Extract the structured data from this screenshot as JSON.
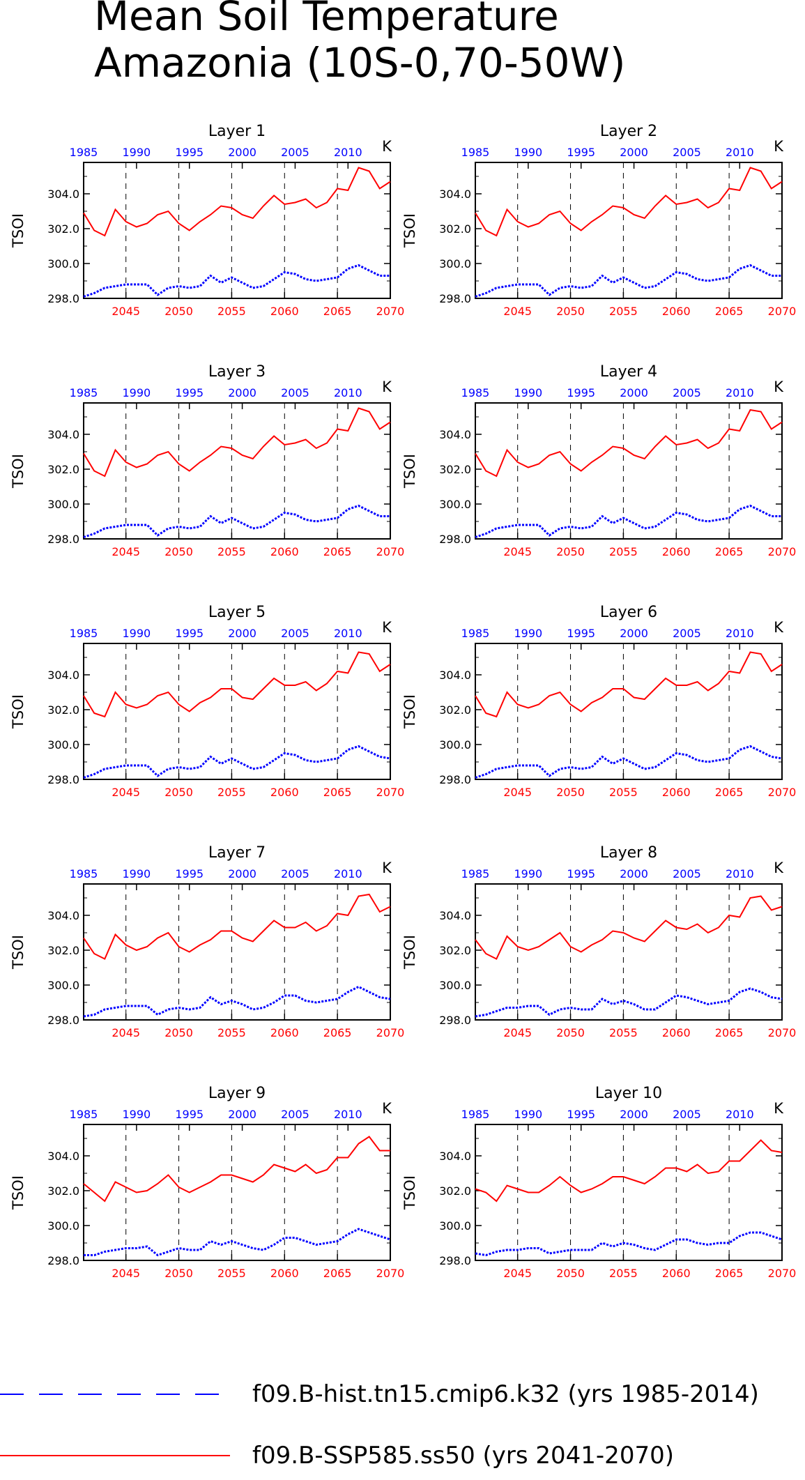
{
  "title_line1": "Mean Soil Temperature",
  "title_line2": "Amazonia (10S-0,70-50W)",
  "colors": {
    "hist": "#0000ff",
    "ssp": "#ff0000",
    "axis": "#000000",
    "grid": "#000000"
  },
  "legend": [
    {
      "label": "f09.B-hist.tn15.cmip6.k32 (yrs 1985-2014)",
      "color": "#0000ff",
      "style": "dashed"
    },
    {
      "label": "f09.B-SSP585.ss50 (yrs 2041-2070)",
      "color": "#ff0000",
      "style": "solid"
    }
  ],
  "axes": {
    "ylabel": "TSOI",
    "units": "K",
    "ylim": [
      298.0,
      305.8
    ],
    "yticks": [
      "298.0",
      "300.0",
      "302.0",
      "304.0"
    ],
    "bottom_xlim": [
      2041,
      2070
    ],
    "bottom_ticks": [
      "2045",
      "2050",
      "2055",
      "2060",
      "2065",
      "2070"
    ],
    "top_xlim": [
      1985,
      2014
    ],
    "top_ticks": [
      "1985",
      "1990",
      "1995",
      "2000",
      "2005",
      "2010"
    ],
    "vertical_gridlines_at": [
      2045,
      2050,
      2055,
      2060,
      2065
    ]
  },
  "chart_data": [
    {
      "type": "line",
      "title": "Layer 1",
      "x_hist": [
        1985,
        1986,
        1987,
        1988,
        1989,
        1990,
        1991,
        1992,
        1993,
        1994,
        1995,
        1996,
        1997,
        1998,
        1999,
        2000,
        2001,
        2002,
        2003,
        2004,
        2005,
        2006,
        2007,
        2008,
        2009,
        2010,
        2011,
        2012,
        2013,
        2014
      ],
      "x_ssp": [
        2041,
        2042,
        2043,
        2044,
        2045,
        2046,
        2047,
        2048,
        2049,
        2050,
        2051,
        2052,
        2053,
        2054,
        2055,
        2056,
        2057,
        2058,
        2059,
        2060,
        2061,
        2062,
        2063,
        2064,
        2065,
        2066,
        2067,
        2068,
        2069,
        2070
      ],
      "series": [
        {
          "name": "f09.B-hist.tn15.cmip6.k32 (yrs 1985-2014)",
          "values": [
            298.1,
            298.3,
            298.6,
            298.7,
            298.8,
            298.8,
            298.8,
            298.2,
            298.6,
            298.7,
            298.6,
            298.7,
            299.3,
            298.9,
            299.2,
            298.9,
            298.6,
            298.7,
            299.1,
            299.5,
            299.4,
            299.1,
            299.0,
            299.1,
            299.2,
            299.7,
            299.9,
            299.6,
            299.3,
            299.3
          ]
        },
        {
          "name": "f09.B-SSP585.ss50 (yrs 2041-2070)",
          "values": [
            302.9,
            301.9,
            301.6,
            303.1,
            302.4,
            302.1,
            302.3,
            302.8,
            303.0,
            302.3,
            301.9,
            302.4,
            302.8,
            303.3,
            303.2,
            302.8,
            302.6,
            303.3,
            303.9,
            303.4,
            303.5,
            303.7,
            303.2,
            303.5,
            304.3,
            304.2,
            305.5,
            305.3,
            304.3,
            304.7
          ]
        }
      ]
    },
    {
      "type": "line",
      "title": "Layer 2",
      "series": [
        {
          "name": "f09.B-hist.tn15.cmip6.k32 (yrs 1985-2014)",
          "values": [
            298.1,
            298.3,
            298.6,
            298.7,
            298.8,
            298.8,
            298.8,
            298.2,
            298.6,
            298.7,
            298.6,
            298.7,
            299.3,
            298.9,
            299.2,
            298.9,
            298.6,
            298.7,
            299.1,
            299.5,
            299.4,
            299.1,
            299.0,
            299.1,
            299.2,
            299.7,
            299.9,
            299.6,
            299.3,
            299.3
          ]
        },
        {
          "name": "f09.B-SSP585.ss50 (yrs 2041-2070)",
          "values": [
            302.9,
            301.9,
            301.6,
            303.1,
            302.4,
            302.1,
            302.3,
            302.8,
            303.0,
            302.3,
            301.9,
            302.4,
            302.8,
            303.3,
            303.2,
            302.8,
            302.6,
            303.3,
            303.9,
            303.4,
            303.5,
            303.7,
            303.2,
            303.5,
            304.3,
            304.2,
            305.5,
            305.3,
            304.3,
            304.7
          ]
        }
      ]
    },
    {
      "type": "line",
      "title": "Layer 3",
      "series": [
        {
          "name": "f09.B-hist.tn15.cmip6.k32 (yrs 1985-2014)",
          "values": [
            298.1,
            298.3,
            298.6,
            298.7,
            298.8,
            298.8,
            298.8,
            298.2,
            298.6,
            298.7,
            298.6,
            298.7,
            299.3,
            298.9,
            299.2,
            298.9,
            298.6,
            298.7,
            299.1,
            299.5,
            299.4,
            299.1,
            299.0,
            299.1,
            299.2,
            299.7,
            299.9,
            299.6,
            299.3,
            299.3
          ]
        },
        {
          "name": "f09.B-SSP585.ss50 (yrs 2041-2070)",
          "values": [
            302.9,
            301.9,
            301.6,
            303.1,
            302.4,
            302.1,
            302.3,
            302.8,
            303.0,
            302.3,
            301.9,
            302.4,
            302.8,
            303.3,
            303.2,
            302.8,
            302.6,
            303.3,
            303.9,
            303.4,
            303.5,
            303.7,
            303.2,
            303.5,
            304.3,
            304.2,
            305.5,
            305.3,
            304.3,
            304.7
          ]
        }
      ]
    },
    {
      "type": "line",
      "title": "Layer 4",
      "series": [
        {
          "name": "f09.B-hist.tn15.cmip6.k32 (yrs 1985-2014)",
          "values": [
            298.1,
            298.3,
            298.6,
            298.7,
            298.8,
            298.8,
            298.8,
            298.2,
            298.6,
            298.7,
            298.6,
            298.7,
            299.3,
            298.9,
            299.2,
            298.9,
            298.6,
            298.7,
            299.1,
            299.5,
            299.4,
            299.1,
            299.0,
            299.1,
            299.2,
            299.7,
            299.9,
            299.6,
            299.3,
            299.3
          ]
        },
        {
          "name": "f09.B-SSP585.ss50 (yrs 2041-2070)",
          "values": [
            302.9,
            301.9,
            301.6,
            303.1,
            302.4,
            302.1,
            302.3,
            302.8,
            303.0,
            302.3,
            301.9,
            302.4,
            302.8,
            303.3,
            303.2,
            302.8,
            302.6,
            303.3,
            303.9,
            303.4,
            303.5,
            303.7,
            303.2,
            303.5,
            304.3,
            304.2,
            305.4,
            305.3,
            304.3,
            304.7
          ]
        }
      ]
    },
    {
      "type": "line",
      "title": "Layer 5",
      "series": [
        {
          "name": "f09.B-hist.tn15.cmip6.k32 (yrs 1985-2014)",
          "values": [
            298.1,
            298.3,
            298.6,
            298.7,
            298.8,
            298.8,
            298.8,
            298.2,
            298.6,
            298.7,
            298.6,
            298.7,
            299.3,
            298.9,
            299.2,
            298.9,
            298.6,
            298.7,
            299.1,
            299.5,
            299.4,
            299.1,
            299.0,
            299.1,
            299.2,
            299.7,
            299.9,
            299.6,
            299.3,
            299.2
          ]
        },
        {
          "name": "f09.B-SSP585.ss50 (yrs 2041-2070)",
          "values": [
            302.8,
            301.8,
            301.6,
            303.0,
            302.3,
            302.1,
            302.3,
            302.8,
            303.0,
            302.3,
            301.9,
            302.4,
            302.7,
            303.2,
            303.2,
            302.7,
            302.6,
            303.2,
            303.8,
            303.4,
            303.4,
            303.6,
            303.1,
            303.5,
            304.2,
            304.1,
            305.3,
            305.2,
            304.2,
            304.6
          ]
        }
      ]
    },
    {
      "type": "line",
      "title": "Layer 6",
      "series": [
        {
          "name": "f09.B-hist.tn15.cmip6.k32 (yrs 1985-2014)",
          "values": [
            298.1,
            298.3,
            298.6,
            298.7,
            298.8,
            298.8,
            298.8,
            298.2,
            298.6,
            298.7,
            298.6,
            298.7,
            299.3,
            298.9,
            299.2,
            298.9,
            298.6,
            298.7,
            299.1,
            299.5,
            299.4,
            299.1,
            299.0,
            299.1,
            299.2,
            299.7,
            299.9,
            299.6,
            299.3,
            299.2
          ]
        },
        {
          "name": "f09.B-SSP585.ss50 (yrs 2041-2070)",
          "values": [
            302.8,
            301.8,
            301.6,
            303.0,
            302.3,
            302.1,
            302.3,
            302.8,
            303.0,
            302.3,
            301.9,
            302.4,
            302.7,
            303.2,
            303.2,
            302.7,
            302.6,
            303.2,
            303.8,
            303.4,
            303.4,
            303.6,
            303.1,
            303.5,
            304.2,
            304.1,
            305.3,
            305.2,
            304.2,
            304.6
          ]
        }
      ]
    },
    {
      "type": "line",
      "title": "Layer 7",
      "series": [
        {
          "name": "f09.B-hist.tn15.cmip6.k32 (yrs 1985-2014)",
          "values": [
            298.2,
            298.3,
            298.6,
            298.7,
            298.8,
            298.8,
            298.8,
            298.3,
            298.6,
            298.7,
            298.6,
            298.7,
            299.3,
            298.9,
            299.1,
            298.9,
            298.6,
            298.7,
            299.0,
            299.4,
            299.4,
            299.1,
            299.0,
            299.1,
            299.2,
            299.6,
            299.9,
            299.6,
            299.3,
            299.2
          ]
        },
        {
          "name": "f09.B-SSP585.ss50 (yrs 2041-2070)",
          "values": [
            302.7,
            301.8,
            301.5,
            302.9,
            302.3,
            302.0,
            302.2,
            302.7,
            303.0,
            302.2,
            301.9,
            302.3,
            302.6,
            303.1,
            303.1,
            302.7,
            302.5,
            303.1,
            303.7,
            303.3,
            303.3,
            303.6,
            303.1,
            303.4,
            304.1,
            304.0,
            305.1,
            305.2,
            304.2,
            304.5
          ]
        }
      ]
    },
    {
      "type": "line",
      "title": "Layer 8",
      "series": [
        {
          "name": "f09.B-hist.tn15.cmip6.k32 (yrs 1985-2014)",
          "values": [
            298.2,
            298.3,
            298.5,
            298.7,
            298.7,
            298.8,
            298.8,
            298.3,
            298.6,
            298.7,
            298.6,
            298.6,
            299.2,
            298.9,
            299.1,
            298.9,
            298.6,
            298.6,
            299.0,
            299.4,
            299.3,
            299.1,
            298.9,
            299.0,
            299.1,
            299.6,
            299.8,
            299.6,
            299.3,
            299.2
          ]
        },
        {
          "name": "f09.B-SSP585.ss50 (yrs 2041-2070)",
          "values": [
            302.6,
            301.8,
            301.5,
            302.8,
            302.2,
            302.0,
            302.2,
            302.6,
            303.0,
            302.2,
            301.9,
            302.3,
            302.6,
            303.1,
            303.0,
            302.7,
            302.5,
            303.1,
            303.7,
            303.3,
            303.2,
            303.5,
            303.0,
            303.3,
            304.0,
            303.9,
            305.0,
            305.1,
            304.3,
            304.5
          ]
        }
      ]
    },
    {
      "type": "line",
      "title": "Layer 9",
      "series": [
        {
          "name": "f09.B-hist.tn15.cmip6.k32 (yrs 1985-2014)",
          "values": [
            298.3,
            298.3,
            298.5,
            298.6,
            298.7,
            298.7,
            298.8,
            298.3,
            298.5,
            298.7,
            298.6,
            298.6,
            299.1,
            298.9,
            299.1,
            298.9,
            298.7,
            298.6,
            298.9,
            299.3,
            299.3,
            299.1,
            298.9,
            299.0,
            299.1,
            299.5,
            299.8,
            299.6,
            299.4,
            299.2
          ]
        },
        {
          "name": "f09.B-SSP585.ss50 (yrs 2041-2070)",
          "values": [
            302.4,
            301.9,
            301.4,
            302.5,
            302.2,
            301.9,
            302.0,
            302.4,
            302.9,
            302.2,
            301.9,
            302.2,
            302.5,
            302.9,
            302.9,
            302.7,
            302.5,
            302.9,
            303.5,
            303.3,
            303.1,
            303.5,
            303.0,
            303.2,
            303.9,
            303.9,
            304.7,
            305.1,
            304.3,
            304.3
          ]
        }
      ]
    },
    {
      "type": "line",
      "title": "Layer 10",
      "series": [
        {
          "name": "f09.B-hist.tn15.cmip6.k32 (yrs 1985-2014)",
          "values": [
            298.4,
            298.3,
            298.5,
            298.6,
            298.6,
            298.7,
            298.7,
            298.4,
            298.5,
            298.6,
            298.6,
            298.6,
            299.0,
            298.8,
            299.0,
            298.9,
            298.7,
            298.6,
            298.9,
            299.2,
            299.2,
            299.0,
            298.9,
            299.0,
            299.0,
            299.4,
            299.6,
            299.6,
            299.4,
            299.2
          ]
        },
        {
          "name": "f09.B-SSP585.ss50 (yrs 2041-2070)",
          "values": [
            302.1,
            301.9,
            301.4,
            302.3,
            302.1,
            301.9,
            301.9,
            302.3,
            302.8,
            302.3,
            301.9,
            302.1,
            302.4,
            302.8,
            302.8,
            302.6,
            302.4,
            302.8,
            303.3,
            303.3,
            303.1,
            303.5,
            303.0,
            303.1,
            303.7,
            303.7,
            304.3,
            304.9,
            304.3,
            304.2
          ]
        }
      ]
    }
  ]
}
